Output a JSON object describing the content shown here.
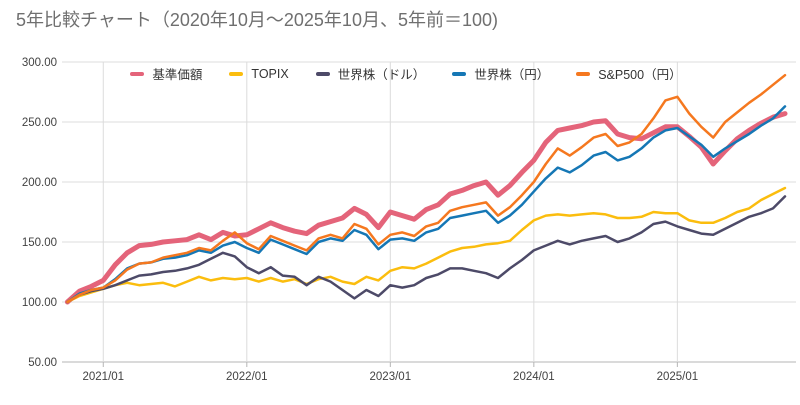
{
  "title": "5年比較チャート（2020年10月～2025年10月、5年前＝100)",
  "chart_data": {
    "type": "line",
    "title": "5年比較チャート（2020年10月～2025年10月、5年前＝100)",
    "x_start": "2020/10",
    "x_end": "2025/10",
    "x_interval": "monthly",
    "ylim": [
      50,
      300
    ],
    "grid": true,
    "legend_position": "top-inside",
    "y_ticks": [
      {
        "label": "50.00",
        "value": 50
      },
      {
        "label": "100.00",
        "value": 100
      },
      {
        "label": "150.00",
        "value": 150
      },
      {
        "label": "200.00",
        "value": 200
      },
      {
        "label": "250.00",
        "value": 250
      },
      {
        "label": "300.00",
        "value": 300
      }
    ],
    "x_ticks": [
      {
        "label": "2021/01",
        "m": 3
      },
      {
        "label": "2022/01",
        "m": 15
      },
      {
        "label": "2023/01",
        "m": 27
      },
      {
        "label": "2024/01",
        "m": 39
      },
      {
        "label": "2025/01",
        "m": 51
      }
    ],
    "series": [
      {
        "name": "基準価額",
        "key": "fund-nav",
        "color": "#e4647a",
        "width": 5,
        "values": [
          100,
          109,
          113,
          118,
          131,
          141,
          147,
          148,
          150,
          151,
          152,
          156,
          152,
          158,
          155,
          156,
          161,
          166,
          162,
          159,
          157,
          164,
          167,
          170,
          178,
          173,
          162,
          175,
          172,
          169,
          177,
          181,
          190,
          193,
          197,
          200,
          189,
          197,
          208,
          218,
          233,
          243,
          245,
          247,
          250,
          251,
          240,
          237,
          236,
          241,
          246,
          246,
          238,
          229,
          215,
          226,
          236,
          243,
          249,
          254,
          257
        ]
      },
      {
        "name": "TOPIX",
        "key": "topix",
        "color": "#fbbd0e",
        "width": 2.5,
        "values": [
          100,
          105,
          108,
          111,
          114,
          116,
          114,
          115,
          116,
          113,
          117,
          121,
          118,
          120,
          119,
          120,
          117,
          120,
          117,
          119,
          115,
          119,
          121,
          117,
          115,
          121,
          118,
          126,
          129,
          128,
          132,
          137,
          142,
          145,
          146,
          148,
          149,
          151,
          160,
          168,
          172,
          173,
          172,
          173,
          174,
          173,
          170,
          170,
          171,
          175,
          174,
          174,
          168,
          166,
          166,
          170,
          175,
          178,
          185,
          190,
          195
        ]
      },
      {
        "name": "世界株（ドル）",
        "key": "world-usd",
        "color": "#4d4a68",
        "width": 2.5,
        "values": [
          100,
          106,
          109,
          111,
          114,
          118,
          122,
          123,
          125,
          126,
          128,
          131,
          136,
          141,
          138,
          129,
          124,
          129,
          122,
          121,
          114,
          121,
          117,
          110,
          103,
          110,
          105,
          114,
          112,
          114,
          120,
          123,
          128,
          128,
          126,
          124,
          120,
          128,
          135,
          143,
          147,
          151,
          148,
          151,
          153,
          155,
          150,
          153,
          158,
          165,
          167,
          163,
          160,
          157,
          156,
          161,
          166,
          171,
          174,
          178,
          188
        ]
      },
      {
        "name": "世界株（円）",
        "key": "world-jpy",
        "color": "#1577b5",
        "width": 2.5,
        "values": [
          100,
          107,
          110,
          112,
          119,
          128,
          132,
          133,
          136,
          137,
          139,
          143,
          141,
          147,
          150,
          145,
          141,
          152,
          148,
          144,
          140,
          150,
          153,
          151,
          160,
          156,
          144,
          152,
          153,
          151,
          158,
          161,
          170,
          172,
          174,
          176,
          166,
          172,
          181,
          192,
          203,
          212,
          208,
          214,
          222,
          225,
          218,
          221,
          228,
          237,
          243,
          245,
          238,
          231,
          221,
          228,
          234,
          240,
          247,
          253,
          263
        ]
      },
      {
        "name": "S&P500（円）",
        "key": "sp500-jpy",
        "color": "#f5781f",
        "width": 2.5,
        "values": [
          100,
          106,
          110,
          112,
          118,
          127,
          132,
          133,
          137,
          139,
          141,
          145,
          143,
          151,
          158,
          149,
          144,
          155,
          151,
          147,
          143,
          153,
          156,
          153,
          165,
          161,
          148,
          156,
          158,
          155,
          163,
          166,
          176,
          179,
          181,
          183,
          172,
          179,
          189,
          200,
          215,
          228,
          222,
          229,
          237,
          240,
          230,
          233,
          240,
          253,
          268,
          271,
          257,
          246,
          237,
          250,
          258,
          266,
          273,
          281,
          289
        ]
      }
    ]
  }
}
